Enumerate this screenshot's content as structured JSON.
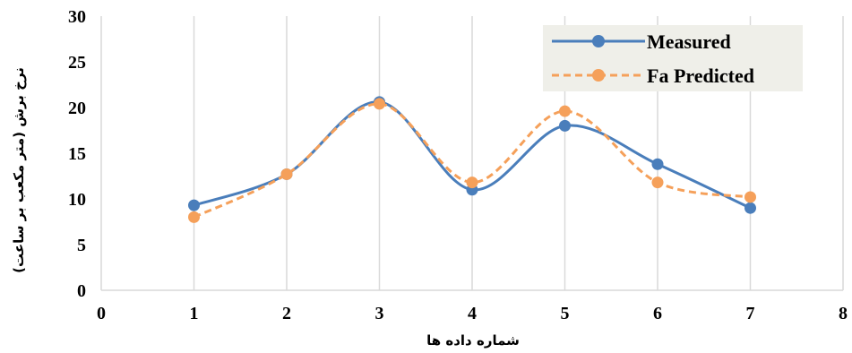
{
  "chart_data": {
    "type": "line",
    "title": "",
    "xlabel": "شماره داده ها",
    "ylabel": "نرخ برش (متر مکعب بر ساعت)",
    "xlim": [
      0,
      8
    ],
    "ylim": [
      0,
      30
    ],
    "x_ticks": [
      "0",
      "1",
      "2",
      "3",
      "4",
      "5",
      "6",
      "7",
      "8"
    ],
    "y_ticks": [
      "0",
      "5",
      "10",
      "15",
      "20",
      "25",
      "30"
    ],
    "grid": "vertical",
    "smooth": true,
    "legend_position": "top-right",
    "series": [
      {
        "name": "Measured",
        "color": "#4a7ebb",
        "style": "solid",
        "marker": "circle",
        "x": [
          1,
          2,
          3,
          4,
          5,
          6,
          7
        ],
        "y": [
          9.3,
          12.7,
          20.6,
          11.0,
          18.0,
          13.8,
          9.0
        ]
      },
      {
        "name": "Fa Predicted",
        "color": "#f5a05a",
        "style": "dashed",
        "marker": "circle",
        "x": [
          1,
          2,
          3,
          4,
          5,
          6,
          7
        ],
        "y": [
          8.0,
          12.7,
          20.4,
          11.8,
          19.6,
          11.8,
          10.2
        ]
      }
    ]
  }
}
